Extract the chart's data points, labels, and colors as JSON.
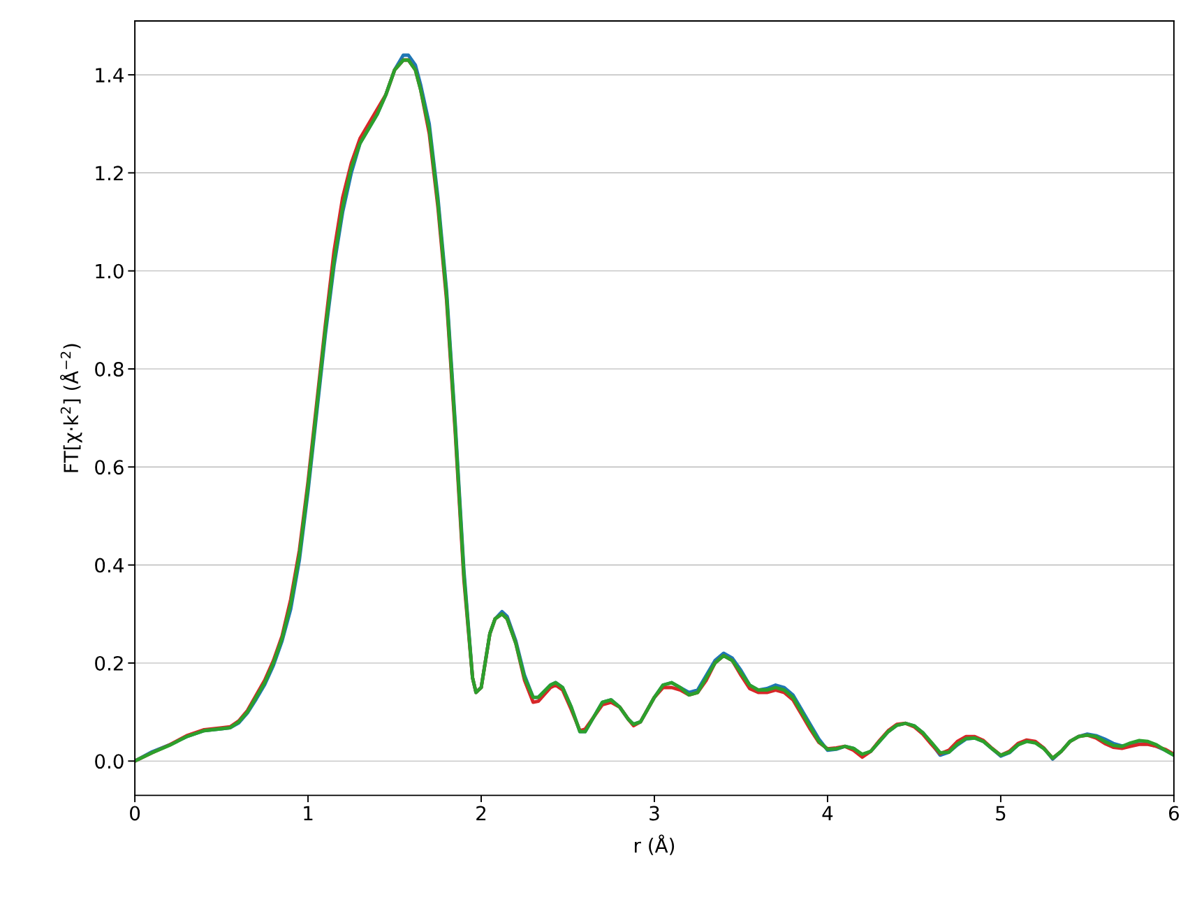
{
  "chart_data": {
    "type": "line",
    "xlabel": "r (Å)",
    "ylabel": "FT[χ·k$^{2}$] (Å$^{−2}$)",
    "xlim": [
      0,
      6
    ],
    "xticks": [
      0,
      1,
      2,
      3,
      4,
      5,
      6
    ],
    "ylim": [
      -0.07,
      1.51
    ],
    "yticks": [
      {
        "value": 0,
        "label": "0.0"
      },
      0.2,
      0.4,
      0.6,
      0.8,
      {
        "value": 1,
        "label": "1.0"
      },
      1.2,
      1.4
    ],
    "grid": "y",
    "line_style": "solid",
    "marker": "none",
    "x": [
      0,
      0.1,
      0.2,
      0.3,
      0.4,
      0.5,
      0.55,
      0.6,
      0.65,
      0.7,
      0.75,
      0.8,
      0.85,
      0.9,
      0.95,
      1.0,
      1.05,
      1.1,
      1.15,
      1.2,
      1.25,
      1.3,
      1.35,
      1.4,
      1.45,
      1.5,
      1.55,
      1.58,
      1.62,
      1.65,
      1.7,
      1.75,
      1.8,
      1.85,
      1.9,
      1.95,
      1.97,
      2.0,
      2.05,
      2.08,
      2.12,
      2.15,
      2.2,
      2.25,
      2.3,
      2.33,
      2.4,
      2.43,
      2.47,
      2.52,
      2.57,
      2.6,
      2.65,
      2.7,
      2.75,
      2.8,
      2.85,
      2.88,
      2.92,
      3.0,
      3.05,
      3.1,
      3.15,
      3.2,
      3.25,
      3.3,
      3.35,
      3.4,
      3.45,
      3.5,
      3.55,
      3.6,
      3.65,
      3.7,
      3.75,
      3.8,
      3.85,
      3.9,
      3.95,
      4.0,
      4.05,
      4.1,
      4.15,
      4.2,
      4.25,
      4.3,
      4.35,
      4.4,
      4.45,
      4.5,
      4.55,
      4.6,
      4.65,
      4.7,
      4.75,
      4.8,
      4.85,
      4.9,
      4.95,
      5.0,
      5.05,
      5.1,
      5.15,
      5.2,
      5.25,
      5.3,
      5.35,
      5.4,
      5.45,
      5.5,
      5.55,
      5.6,
      5.65,
      5.7,
      5.75,
      5.8,
      5.85,
      5.9,
      5.95,
      6.0
    ],
    "series": [
      {
        "color": "#1f77b4",
        "values": [
          0,
          0.019,
          0.033,
          0.05,
          0.062,
          0.066,
          0.068,
          0.078,
          0.098,
          0.126,
          0.156,
          0.195,
          0.245,
          0.31,
          0.41,
          0.55,
          0.71,
          0.87,
          1.01,
          1.12,
          1.2,
          1.26,
          1.29,
          1.32,
          1.36,
          1.41,
          1.44,
          1.44,
          1.42,
          1.38,
          1.3,
          1.15,
          0.96,
          0.69,
          0.39,
          0.17,
          0.14,
          0.15,
          0.26,
          0.29,
          0.305,
          0.295,
          0.245,
          0.175,
          0.13,
          0.13,
          0.155,
          0.16,
          0.15,
          0.11,
          0.06,
          0.06,
          0.09,
          0.12,
          0.125,
          0.11,
          0.085,
          0.075,
          0.08,
          0.13,
          0.155,
          0.16,
          0.15,
          0.14,
          0.145,
          0.175,
          0.205,
          0.22,
          0.21,
          0.185,
          0.155,
          0.145,
          0.148,
          0.155,
          0.15,
          0.135,
          0.105,
          0.075,
          0.045,
          0.022,
          0.024,
          0.03,
          0.026,
          0.012,
          0.02,
          0.04,
          0.06,
          0.073,
          0.077,
          0.072,
          0.058,
          0.036,
          0.012,
          0.018,
          0.033,
          0.045,
          0.047,
          0.04,
          0.025,
          0.01,
          0.017,
          0.033,
          0.042,
          0.039,
          0.026,
          0.004,
          0.02,
          0.04,
          0.05,
          0.055,
          0.052,
          0.045,
          0.036,
          0.031,
          0.032,
          0.035,
          0.035,
          0.03,
          0.022,
          0.012
        ]
      },
      {
        "color": "#d62728",
        "values": [
          0,
          0.017,
          0.033,
          0.052,
          0.064,
          0.068,
          0.07,
          0.082,
          0.103,
          0.134,
          0.165,
          0.205,
          0.255,
          0.33,
          0.43,
          0.57,
          0.73,
          0.89,
          1.04,
          1.15,
          1.22,
          1.27,
          1.3,
          1.33,
          1.36,
          1.41,
          1.43,
          1.43,
          1.41,
          1.37,
          1.28,
          1.13,
          0.94,
          0.67,
          0.37,
          0.17,
          0.14,
          0.15,
          0.26,
          0.29,
          0.3,
          0.29,
          0.24,
          0.165,
          0.12,
          0.122,
          0.15,
          0.155,
          0.145,
          0.105,
          0.062,
          0.065,
          0.09,
          0.115,
          0.12,
          0.11,
          0.085,
          0.072,
          0.08,
          0.13,
          0.15,
          0.15,
          0.145,
          0.135,
          0.14,
          0.165,
          0.2,
          0.215,
          0.205,
          0.175,
          0.148,
          0.14,
          0.14,
          0.145,
          0.14,
          0.125,
          0.095,
          0.065,
          0.038,
          0.025,
          0.027,
          0.03,
          0.022,
          0.008,
          0.02,
          0.042,
          0.062,
          0.075,
          0.077,
          0.07,
          0.055,
          0.034,
          0.015,
          0.022,
          0.04,
          0.05,
          0.05,
          0.042,
          0.026,
          0.012,
          0.02,
          0.036,
          0.043,
          0.04,
          0.026,
          0.006,
          0.02,
          0.04,
          0.05,
          0.053,
          0.047,
          0.036,
          0.028,
          0.026,
          0.03,
          0.034,
          0.034,
          0.03,
          0.024,
          0.014
        ]
      },
      {
        "color": "#2ca02c",
        "values": [
          0,
          0.017,
          0.032,
          0.05,
          0.062,
          0.066,
          0.068,
          0.08,
          0.1,
          0.13,
          0.16,
          0.2,
          0.25,
          0.32,
          0.42,
          0.56,
          0.72,
          0.88,
          1.02,
          1.13,
          1.21,
          1.26,
          1.29,
          1.32,
          1.36,
          1.41,
          1.43,
          1.43,
          1.41,
          1.37,
          1.29,
          1.14,
          0.95,
          0.68,
          0.38,
          0.17,
          0.14,
          0.15,
          0.26,
          0.29,
          0.3,
          0.29,
          0.24,
          0.17,
          0.13,
          0.13,
          0.155,
          0.16,
          0.15,
          0.11,
          0.06,
          0.06,
          0.09,
          0.12,
          0.125,
          0.11,
          0.085,
          0.075,
          0.08,
          0.13,
          0.155,
          0.16,
          0.15,
          0.135,
          0.14,
          0.17,
          0.2,
          0.215,
          0.205,
          0.18,
          0.155,
          0.145,
          0.145,
          0.15,
          0.145,
          0.13,
          0.1,
          0.07,
          0.04,
          0.024,
          0.025,
          0.03,
          0.026,
          0.014,
          0.02,
          0.04,
          0.06,
          0.073,
          0.077,
          0.072,
          0.058,
          0.038,
          0.017,
          0.018,
          0.035,
          0.046,
          0.047,
          0.04,
          0.025,
          0.012,
          0.018,
          0.033,
          0.04,
          0.037,
          0.025,
          0.006,
          0.02,
          0.04,
          0.05,
          0.053,
          0.05,
          0.04,
          0.032,
          0.03,
          0.037,
          0.042,
          0.04,
          0.033,
          0.022,
          0.012
        ]
      }
    ]
  }
}
